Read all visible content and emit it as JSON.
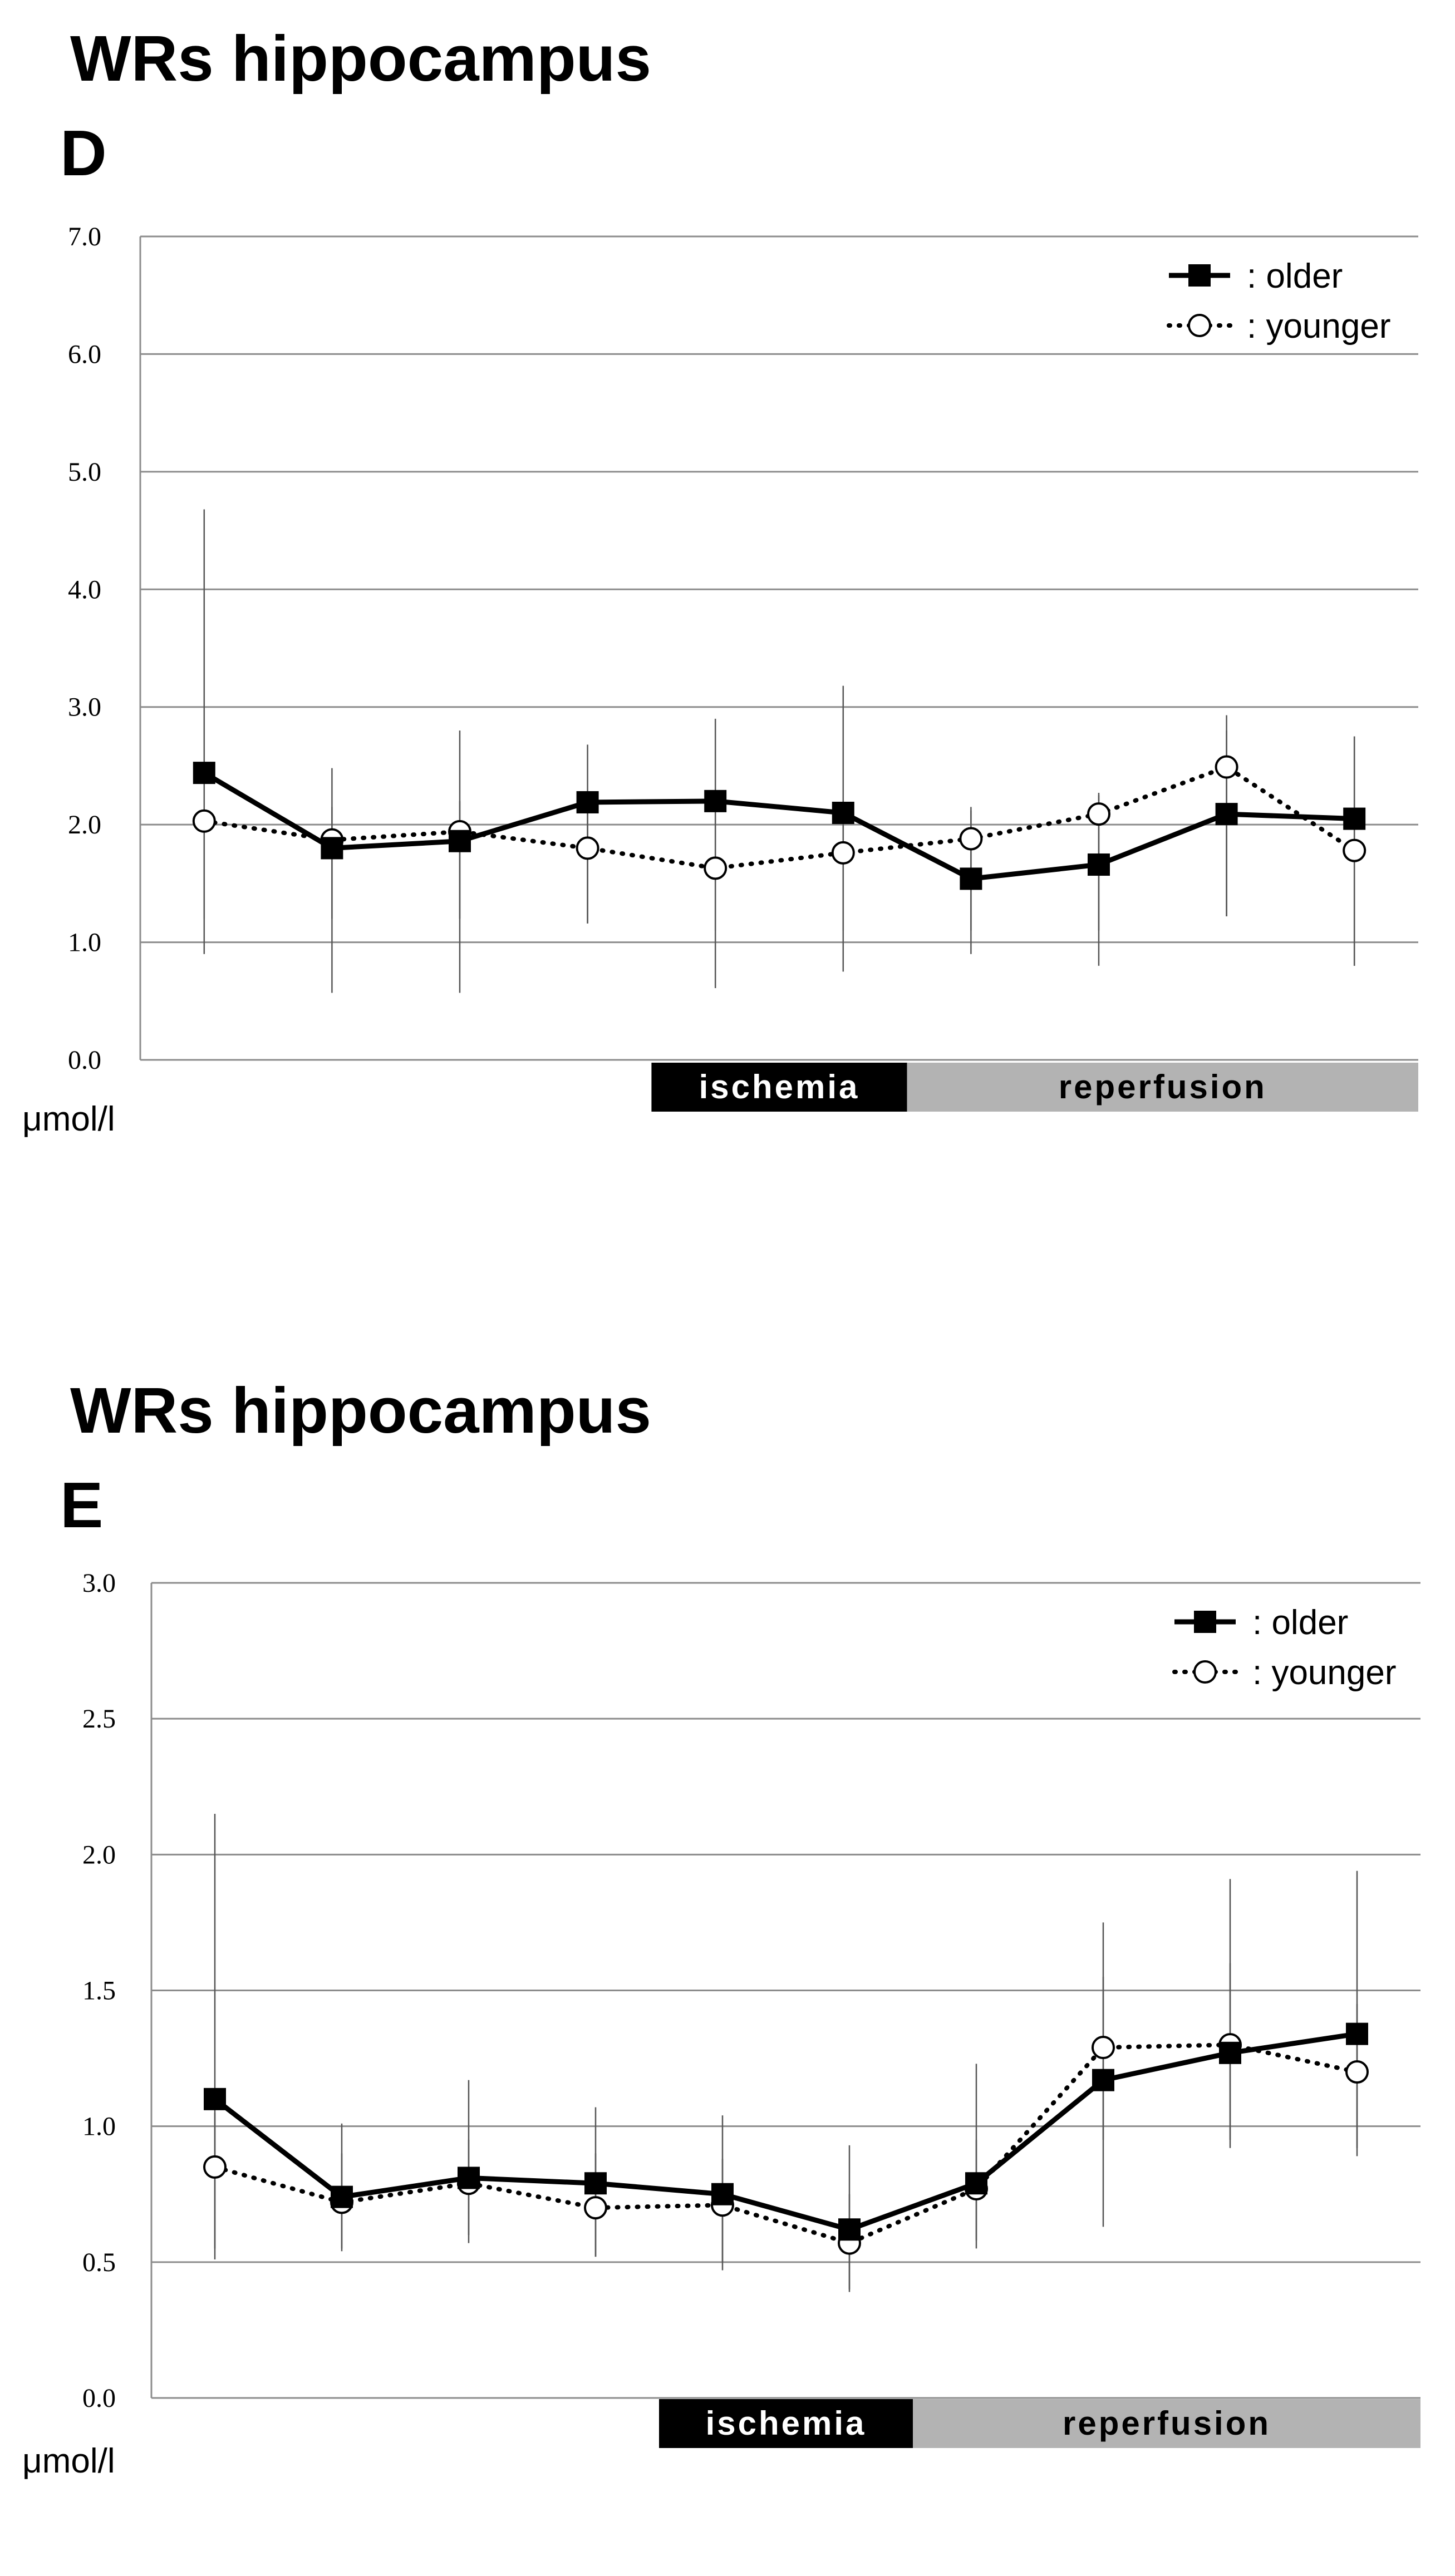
{
  "chart_data": [
    {
      "type": "line",
      "title": "WRs hippocampus",
      "panel_label": "D",
      "ylabel": "μmol/l",
      "ylim": [
        0,
        7
      ],
      "yticks": [
        "0.0",
        "1.0",
        "2.0",
        "3.0",
        "4.0",
        "5.0",
        "6.0",
        "7.0"
      ],
      "grid": true,
      "legend_position": "top-right",
      "phases": [
        {
          "label": "ischemia",
          "color": "#000000",
          "text_color": "#ffffff",
          "start": 4.5,
          "end": 6.5
        },
        {
          "label": "reperfusion",
          "color": "#b3b3b3",
          "text_color": "#000000",
          "start": 6.5,
          "end": 10.5
        }
      ],
      "x": [
        1,
        2,
        3,
        4,
        5,
        6,
        7,
        8,
        9,
        10
      ],
      "series": [
        {
          "name": ": older",
          "marker": "square",
          "line": "solid",
          "values": [
            2.44,
            1.8,
            1.86,
            2.19,
            2.2,
            2.1,
            1.54,
            1.66,
            2.09,
            2.05
          ],
          "error_high": [
            4.68,
            2.48,
            2.8,
            2.68,
            2.9,
            3.18,
            2.12,
            2.27,
            2.93,
            2.75
          ],
          "error_low": [
            0.9,
            0.57,
            0.57,
            1.16,
            0.61,
            0.75,
            0.9,
            0.8,
            1.22,
            0.8
          ]
        },
        {
          "name": ": younger",
          "marker": "circle",
          "line": "dotted",
          "values": [
            2.03,
            1.87,
            1.94,
            1.8,
            1.63,
            1.76,
            1.88,
            2.09,
            2.49,
            1.78
          ],
          "error_high": [
            2.1,
            2.15,
            2.2,
            2.2,
            2.2,
            2.2,
            2.15,
            2.25,
            2.8,
            2.75
          ],
          "error_low": [
            1.2,
            1.2,
            1.2,
            1.16,
            1.1,
            1.1,
            1.1,
            1.1,
            1.22,
            0.8
          ]
        }
      ]
    },
    {
      "type": "line",
      "title": "WRs hippocampus",
      "panel_label": "E",
      "ylabel": "μmol/l",
      "ylim": [
        0,
        3
      ],
      "yticks": [
        "0.0",
        "0.5",
        "1.0",
        "1.5",
        "2.0",
        "2.5",
        "3.0"
      ],
      "grid": true,
      "legend_position": "top-right",
      "phases": [
        {
          "label": "ischemia",
          "color": "#000000",
          "text_color": "#ffffff",
          "start": 4.5,
          "end": 6.5
        },
        {
          "label": "reperfusion",
          "color": "#b3b3b3",
          "text_color": "#000000",
          "start": 6.5,
          "end": 10.5
        }
      ],
      "x": [
        1,
        2,
        3,
        4,
        5,
        6,
        7,
        8,
        9,
        10
      ],
      "series": [
        {
          "name": ": older",
          "marker": "square",
          "line": "solid",
          "values": [
            1.1,
            0.74,
            0.81,
            0.79,
            0.75,
            0.62,
            0.79,
            1.17,
            1.27,
            1.34
          ],
          "error_high": [
            2.15,
            1.01,
            1.17,
            1.07,
            1.04,
            0.93,
            1.23,
            1.75,
            1.91,
            1.94
          ],
          "error_low": [
            0.51,
            0.54,
            0.57,
            0.52,
            0.47,
            0.39,
            0.55,
            0.63,
            0.92,
            0.89
          ]
        },
        {
          "name": ": younger",
          "marker": "circle",
          "line": "dotted",
          "values": [
            0.85,
            0.72,
            0.79,
            0.7,
            0.71,
            0.57,
            0.77,
            1.29,
            1.3,
            1.2
          ],
          "error_high": [
            1.05,
            0.9,
            0.95,
            0.9,
            0.88,
            0.75,
            0.95,
            1.55,
            1.6,
            1.45
          ],
          "error_low": [
            0.55,
            0.55,
            0.6,
            0.52,
            0.5,
            0.4,
            0.58,
            0.95,
            0.95,
            0.92
          ]
        }
      ]
    }
  ]
}
